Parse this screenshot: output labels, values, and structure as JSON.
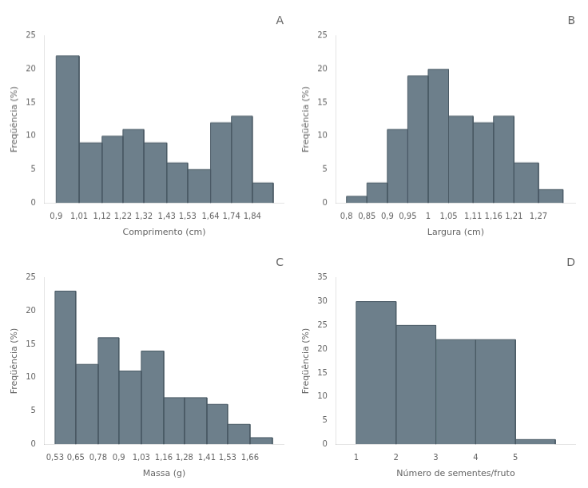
{
  "chart_data": [
    {
      "type": "histogram",
      "title": "A",
      "bins": [
        0.9,
        1.01,
        1.12,
        1.22,
        1.32,
        1.43,
        1.53,
        1.64,
        1.74,
        1.84,
        1.94
      ],
      "values": [
        22,
        9,
        10,
        11,
        9,
        6,
        5,
        12,
        13,
        3
      ],
      "xlabel": "Comprimento (cm)",
      "ylabel": "Freqüência (%)",
      "xlim": [
        0.845,
        1.99
      ],
      "xticks": [
        {
          "value": 0.9,
          "label": "0,9"
        },
        {
          "value": 1.01,
          "label": "1,01"
        },
        {
          "value": 1.12,
          "label": "1,12"
        },
        {
          "value": 1.22,
          "label": "1,22"
        },
        {
          "value": 1.32,
          "label": "1,32"
        },
        {
          "value": 1.43,
          "label": "1,43"
        },
        {
          "value": 1.53,
          "label": "1,53"
        },
        {
          "value": 1.64,
          "label": "1,64"
        },
        {
          "value": 1.74,
          "label": "1,74"
        },
        {
          "value": 1.84,
          "label": "1,84"
        }
      ],
      "ylim": [
        0,
        25
      ],
      "yticks": [
        0,
        5,
        10,
        15,
        20,
        25
      ],
      "color": "#6d7f8b",
      "grid": false
    },
    {
      "type": "histogram",
      "title": "B",
      "bins": [
        0.8,
        0.85,
        0.9,
        0.95,
        1.0,
        1.05,
        1.11,
        1.16,
        1.21,
        1.27,
        1.33
      ],
      "values": [
        1,
        3,
        11,
        19,
        20,
        13,
        12,
        13,
        6,
        2
      ],
      "xlabel": "Largura (cm)",
      "ylabel": "Freqüência (%)",
      "xlim": [
        0.775,
        1.36
      ],
      "xticks": [
        {
          "value": 0.8,
          "label": "0,8"
        },
        {
          "value": 0.85,
          "label": "0,85"
        },
        {
          "value": 0.9,
          "label": "0,9"
        },
        {
          "value": 0.95,
          "label": "0,95"
        },
        1,
        {
          "value": 1.05,
          "label": "1,05"
        },
        {
          "value": 1.11,
          "label": "1,11"
        },
        {
          "value": 1.16,
          "label": "1,16"
        },
        {
          "value": 1.21,
          "label": "1,21"
        },
        {
          "value": 1.27,
          "label": "1,27"
        }
      ],
      "ylim": [
        0,
        25
      ],
      "yticks": [
        0,
        5,
        10,
        15,
        20,
        25
      ],
      "color": "#6d7f8b",
      "grid": false
    },
    {
      "type": "histogram",
      "title": "C",
      "bins": [
        0.53,
        0.65,
        0.78,
        0.9,
        1.03,
        1.16,
        1.28,
        1.41,
        1.53,
        1.66,
        1.79
      ],
      "values": [
        23,
        12,
        16,
        11,
        14,
        7,
        7,
        6,
        3,
        1
      ],
      "xlabel": "Massa (g)",
      "ylabel": "Freqüência (%)",
      "xlim": [
        0.47,
        1.855
      ],
      "xticks": [
        {
          "value": 0.53,
          "label": "0,53"
        },
        {
          "value": 0.65,
          "label": "0,65"
        },
        {
          "value": 0.78,
          "label": "0,78"
        },
        {
          "value": 0.9,
          "label": "0,9"
        },
        {
          "value": 1.03,
          "label": "1,03"
        },
        {
          "value": 1.16,
          "label": "1,16"
        },
        {
          "value": 1.28,
          "label": "1,28"
        },
        {
          "value": 1.41,
          "label": "1,41"
        },
        {
          "value": 1.53,
          "label": "1,53"
        },
        {
          "value": 1.66,
          "label": "1,66"
        }
      ],
      "ylim": [
        0,
        25
      ],
      "yticks": [
        0,
        5,
        10,
        15,
        20,
        25
      ],
      "color": "#6d7f8b",
      "grid": false
    },
    {
      "type": "histogram",
      "title": "D",
      "bins": [
        1,
        2,
        3,
        4,
        5,
        6
      ],
      "values": [
        30,
        25,
        22,
        22,
        1
      ],
      "xlabel": "Número de sementes/fruto",
      "ylabel": "Freqüência (%)",
      "xlim": [
        0.5,
        6.5
      ],
      "xticks": [
        1,
        2,
        3,
        4,
        5
      ],
      "ylim": [
        0,
        35
      ],
      "yticks": [
        0,
        5,
        10,
        15,
        20,
        25,
        30,
        35
      ],
      "color": "#6d7f8b",
      "grid": false
    }
  ]
}
